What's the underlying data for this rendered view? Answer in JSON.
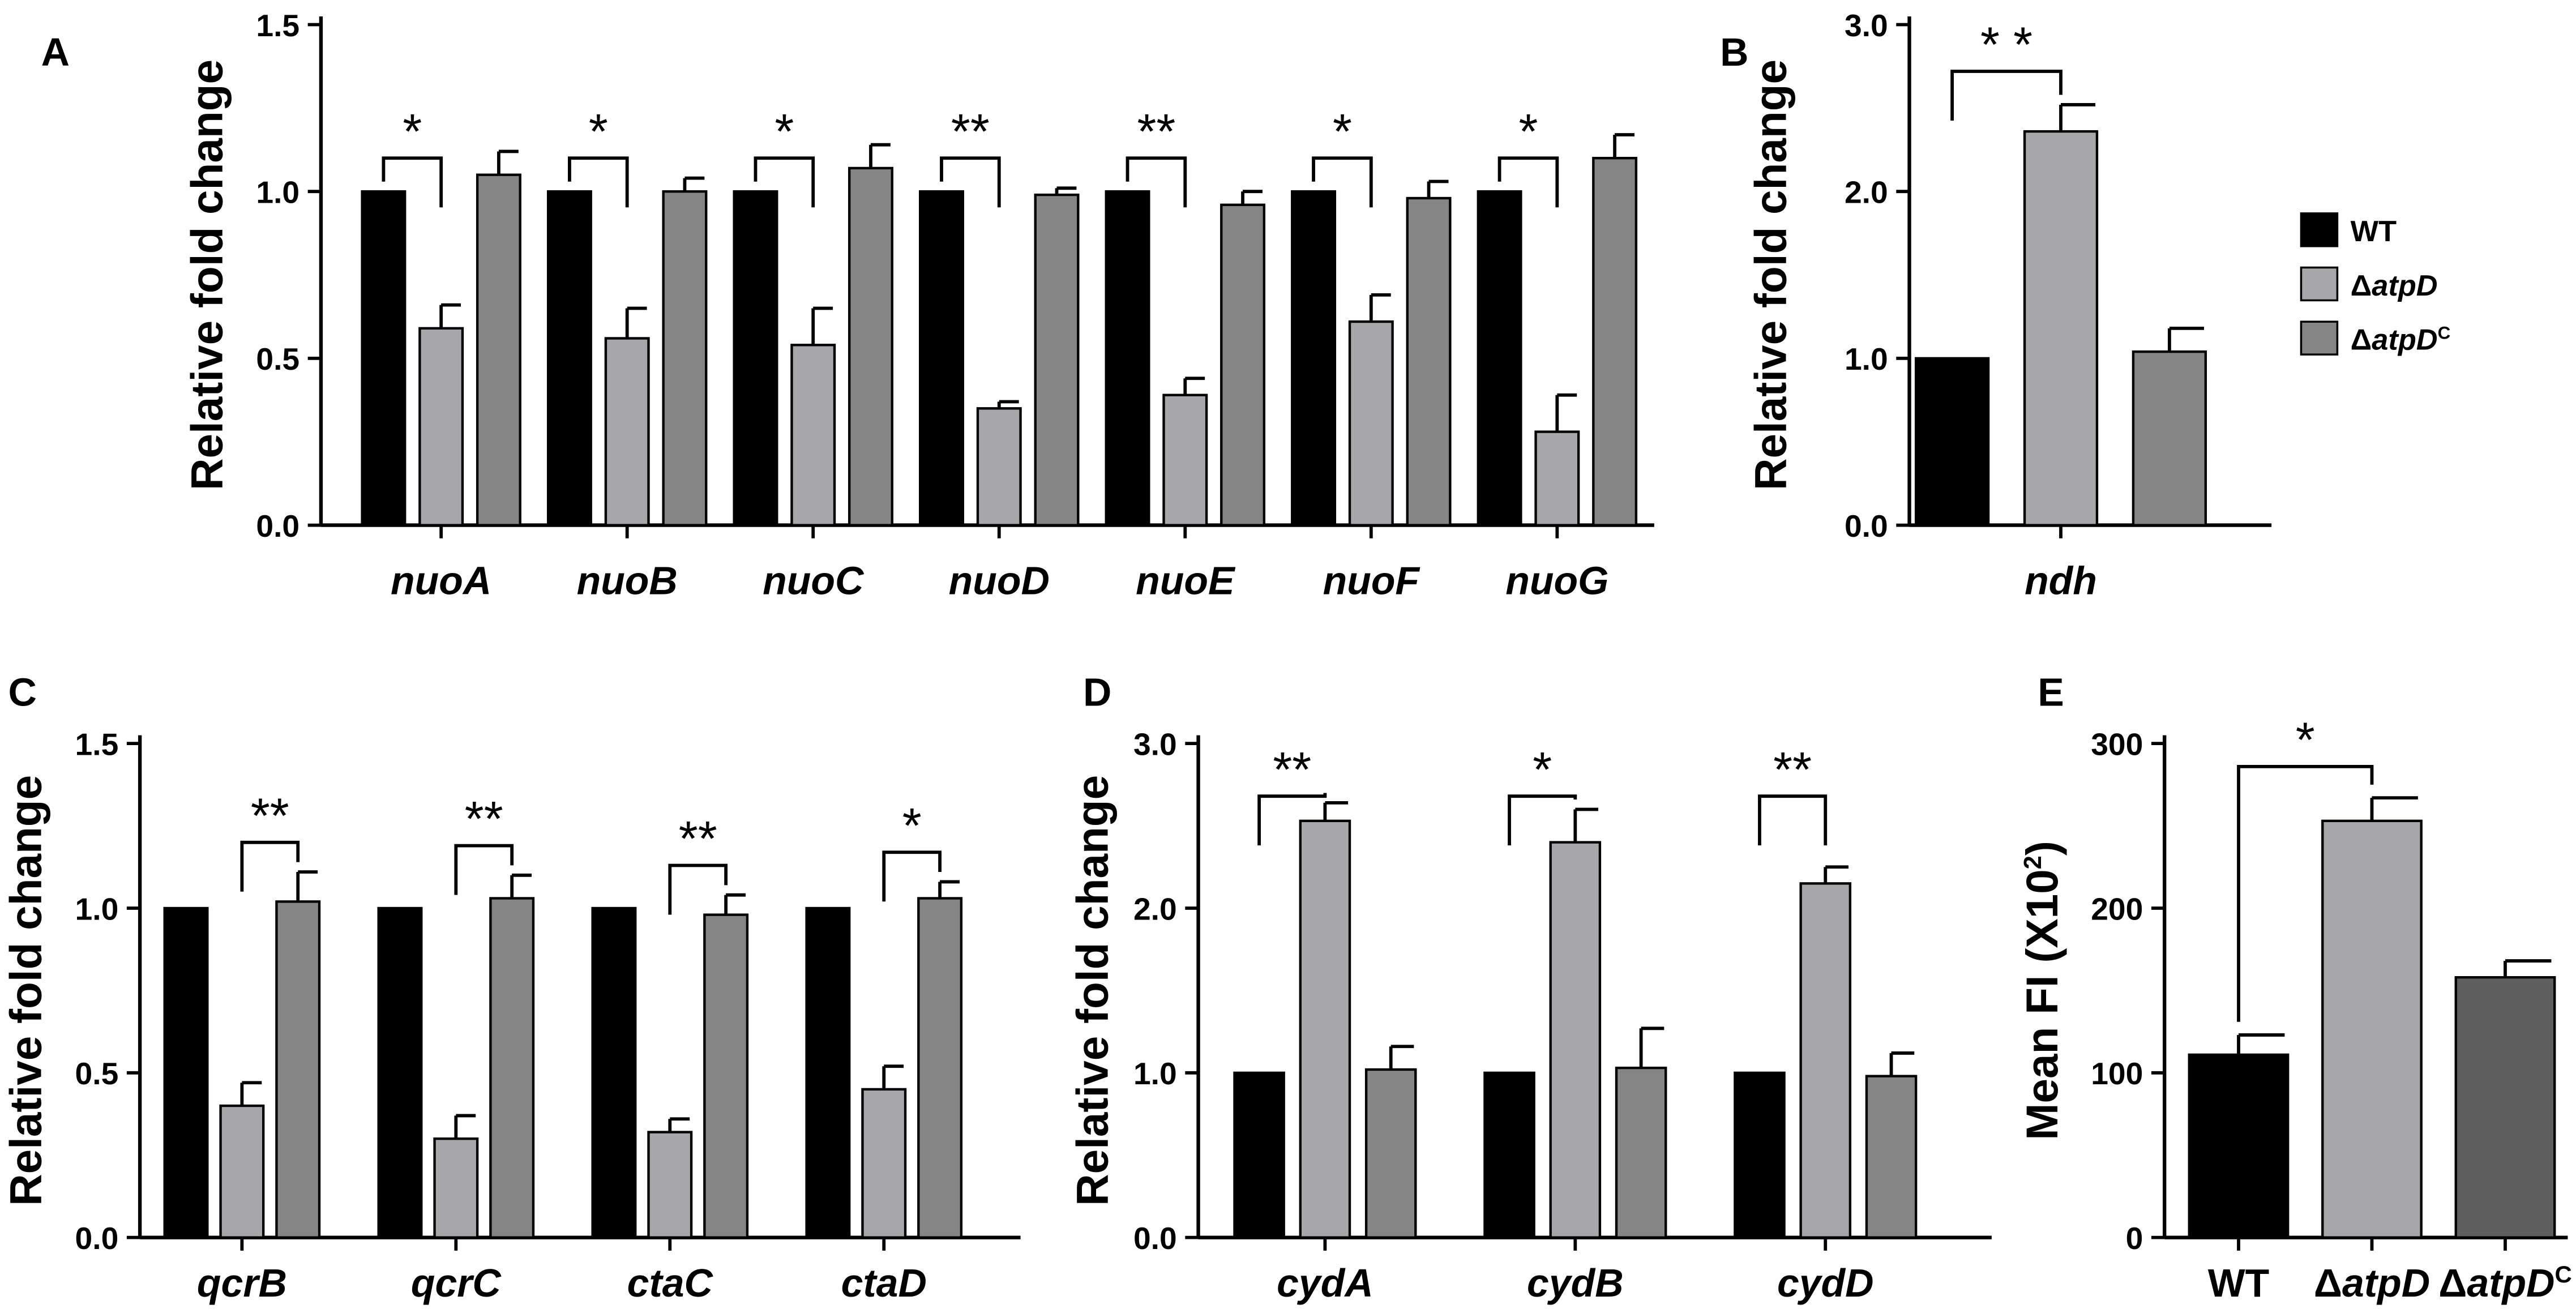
{
  "colors": {
    "wt": "#000000",
    "delta": "#a7a7ab",
    "comp_light": "#858585",
    "comp_dark": "#5e5e5e",
    "axis": "#000000"
  },
  "legend": {
    "items": [
      {
        "key": "wt",
        "label": "WT"
      },
      {
        "key": "delta",
        "label": "ΔatpD"
      },
      {
        "key": "comp",
        "label": "ΔatpD",
        "superscript": "C"
      }
    ]
  },
  "chart_data": [
    {
      "panel": "A",
      "type": "bar",
      "ylabel": "Relative fold change",
      "ylim": [
        0,
        1.5
      ],
      "yticks": [
        "0.0",
        "0.5",
        "1.0",
        "1.5"
      ],
      "categories": [
        "nuoA",
        "nuoB",
        "nuoC",
        "nuoD",
        "nuoE",
        "nuoF",
        "nuoG"
      ],
      "series": [
        {
          "name": "WT",
          "values": [
            1.0,
            1.0,
            1.0,
            1.0,
            1.0,
            1.0,
            1.0
          ],
          "errors": [
            0,
            0,
            0,
            0,
            0,
            0,
            0
          ]
        },
        {
          "name": "ΔatpD",
          "values": [
            0.59,
            0.56,
            0.54,
            0.35,
            0.39,
            0.61,
            0.28
          ],
          "errors": [
            0.07,
            0.09,
            0.11,
            0.02,
            0.05,
            0.08,
            0.11
          ]
        },
        {
          "name": "ΔatpD^C",
          "values": [
            1.05,
            1.0,
            1.07,
            0.99,
            0.96,
            0.98,
            1.1
          ],
          "errors": [
            0.07,
            0.04,
            0.07,
            0.02,
            0.04,
            0.05,
            0.07
          ]
        }
      ],
      "significance": [
        {
          "category": 0,
          "from": 0,
          "to": 1,
          "label": "*"
        },
        {
          "category": 1,
          "from": 0,
          "to": 1,
          "label": "*"
        },
        {
          "category": 2,
          "from": 0,
          "to": 1,
          "label": "*"
        },
        {
          "category": 3,
          "from": 0,
          "to": 1,
          "label": "**"
        },
        {
          "category": 4,
          "from": 0,
          "to": 1,
          "label": "**"
        },
        {
          "category": 5,
          "from": 0,
          "to": 1,
          "label": "*"
        },
        {
          "category": 6,
          "from": 0,
          "to": 1,
          "label": "*"
        }
      ]
    },
    {
      "panel": "B",
      "type": "bar",
      "ylabel": "Relative fold change",
      "ylim": [
        0,
        3.0
      ],
      "yticks": [
        "0.0",
        "1.0",
        "2.0",
        "3.0"
      ],
      "categories": [
        "ndh"
      ],
      "series": [
        {
          "name": "WT",
          "values": [
            1.0
          ],
          "errors": [
            0
          ]
        },
        {
          "name": "ΔatpD",
          "values": [
            2.36
          ],
          "errors": [
            0.16
          ]
        },
        {
          "name": "ΔatpD^C",
          "values": [
            1.04
          ],
          "errors": [
            0.14
          ]
        }
      ],
      "significance": [
        {
          "category": 0,
          "from": 0,
          "to": 1,
          "label": "* *"
        }
      ]
    },
    {
      "panel": "C",
      "type": "bar",
      "ylabel": "Relative fold change",
      "ylim": [
        0,
        1.5
      ],
      "yticks": [
        "0.0",
        "0.5",
        "1.0",
        "1.5"
      ],
      "categories": [
        "qcrB",
        "qcrC",
        "ctaC",
        "ctaD"
      ],
      "series": [
        {
          "name": "WT",
          "values": [
            1.0,
            1.0,
            1.0,
            1.0
          ],
          "errors": [
            0,
            0,
            0,
            0
          ]
        },
        {
          "name": "ΔatpD",
          "values": [
            0.4,
            0.3,
            0.32,
            0.45
          ],
          "errors": [
            0.07,
            0.07,
            0.04,
            0.07
          ]
        },
        {
          "name": "ΔatpD^C",
          "values": [
            1.02,
            1.03,
            0.98,
            1.03
          ],
          "errors": [
            0.09,
            0.07,
            0.06,
            0.05
          ]
        }
      ],
      "significance": [
        {
          "category": 0,
          "from": 1,
          "to": 2,
          "label": "**"
        },
        {
          "category": 1,
          "from": 1,
          "to": 2,
          "label": "**"
        },
        {
          "category": 2,
          "from": 1,
          "to": 2,
          "label": "**"
        },
        {
          "category": 3,
          "from": 1,
          "to": 2,
          "label": "*"
        }
      ]
    },
    {
      "panel": "D",
      "type": "bar",
      "ylabel": "Relative fold change",
      "ylim": [
        0,
        3.0
      ],
      "yticks": [
        "0.0",
        "1.0",
        "2.0",
        "3.0"
      ],
      "categories": [
        "cydA",
        "cydB",
        "cydD"
      ],
      "series": [
        {
          "name": "WT",
          "values": [
            1.0,
            1.0,
            1.0
          ],
          "errors": [
            0,
            0,
            0
          ]
        },
        {
          "name": "ΔatpD",
          "values": [
            2.53,
            2.4,
            2.15
          ],
          "errors": [
            0.11,
            0.2,
            0.1
          ]
        },
        {
          "name": "ΔatpD^C",
          "values": [
            1.02,
            1.03,
            0.98
          ],
          "errors": [
            0.14,
            0.24,
            0.14
          ]
        }
      ],
      "significance": [
        {
          "category": 0,
          "from": 0,
          "to": 1,
          "label": "**"
        },
        {
          "category": 1,
          "from": 0,
          "to": 1,
          "label": "*"
        },
        {
          "category": 2,
          "from": 0,
          "to": 1,
          "label": "**"
        }
      ]
    },
    {
      "panel": "E",
      "type": "bar",
      "ylabel": "Mean FI (X10",
      "ylabel_superscript": "2",
      "ylabel_suffix": ")",
      "ylim": [
        0,
        300
      ],
      "yticks": [
        "0",
        "100",
        "200",
        "300"
      ],
      "categories": [
        "WT",
        "ΔatpD",
        "ΔatpD"
      ],
      "category_superscripts": [
        "",
        "",
        "C"
      ],
      "values": [
        111,
        253,
        158
      ],
      "errors": [
        12,
        14,
        10
      ],
      "significance": [
        {
          "from": 0,
          "to": 1,
          "label": "*"
        }
      ]
    }
  ]
}
